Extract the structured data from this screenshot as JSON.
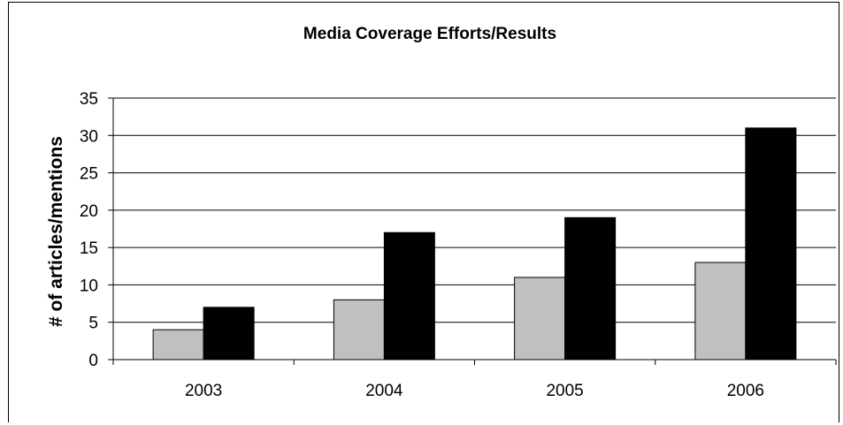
{
  "chart_data": {
    "type": "bar",
    "title": "Media Coverage Efforts/Results",
    "xlabel": "",
    "ylabel": "# of articles/mentions",
    "categories": [
      "2003",
      "2004",
      "2005",
      "2006"
    ],
    "series": [
      {
        "values": [
          4,
          8,
          11,
          13
        ],
        "color": "#c0c0c0"
      },
      {
        "values": [
          7,
          17,
          19,
          31
        ],
        "color": "#000000"
      }
    ],
    "ylim": [
      0,
      35
    ],
    "yticks": [
      "0",
      "5",
      "10",
      "15",
      "20",
      "25",
      "30",
      "35"
    ],
    "grid": true,
    "legend": "none"
  }
}
